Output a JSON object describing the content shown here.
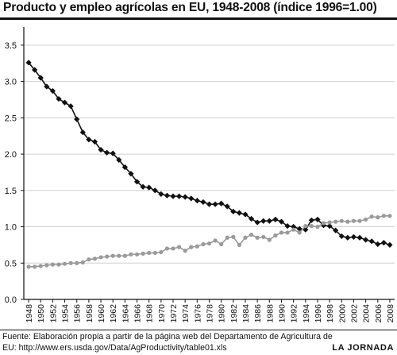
{
  "title": "Producto y empleo agrícolas en EU, 1948-2008 (índice 1996=1.00)",
  "source_line1": "Fuente: Elaboración propia a partir de la página web del Departamento de Agricultura de",
  "source_line2": "EU: http://www.ers.usda.gov/Data/AgProductivity/table01.xls",
  "credit": "LA JORNADA",
  "colors": {
    "employment": "#111111",
    "output": "#9a9a9a",
    "grid": "#d0d0d0",
    "axis": "#111111"
  },
  "chart_data": {
    "type": "line",
    "title": "Producto y empleo agrícolas en EU, 1948-2008 (índice 1996=1.00)",
    "xlabel": "",
    "ylabel": "",
    "x": [
      1948,
      1949,
      1950,
      1951,
      1952,
      1953,
      1954,
      1955,
      1956,
      1957,
      1958,
      1959,
      1960,
      1961,
      1962,
      1963,
      1964,
      1965,
      1966,
      1967,
      1968,
      1969,
      1970,
      1971,
      1972,
      1973,
      1974,
      1975,
      1976,
      1977,
      1978,
      1979,
      1980,
      1981,
      1982,
      1983,
      1984,
      1985,
      1986,
      1987,
      1988,
      1989,
      1990,
      1991,
      1992,
      1993,
      1994,
      1995,
      1996,
      1997,
      1998,
      1999,
      2000,
      2001,
      2002,
      2003,
      2004,
      2005,
      2006,
      2007,
      2008
    ],
    "x_ticks": [
      1948,
      1950,
      1952,
      1954,
      1956,
      1958,
      1960,
      1962,
      1964,
      1966,
      1968,
      1970,
      1972,
      1974,
      1976,
      1978,
      1980,
      1982,
      1984,
      1986,
      1988,
      1990,
      1992,
      1994,
      1996,
      1998,
      2000,
      2002,
      2004,
      2006,
      2008
    ],
    "y_ticks": [
      0.0,
      0.5,
      1.0,
      1.5,
      2.0,
      2.5,
      3.0,
      3.5
    ],
    "y_tick_labels": [
      "0.0",
      "0.5",
      "1.0",
      "1.5",
      "2.0",
      "2.5",
      "3.0",
      "3.5"
    ],
    "ylim": [
      0,
      3.75
    ],
    "xlim": [
      1947.2,
      2008.8
    ],
    "grid": "horizontal",
    "legend": "none",
    "series": [
      {
        "marker": "diamond",
        "color": "#111111",
        "values": [
          3.26,
          3.16,
          3.05,
          2.93,
          2.87,
          2.76,
          2.71,
          2.66,
          2.48,
          2.3,
          2.2,
          2.17,
          2.06,
          2.02,
          2.01,
          1.92,
          1.82,
          1.73,
          1.62,
          1.55,
          1.54,
          1.5,
          1.45,
          1.43,
          1.42,
          1.42,
          1.41,
          1.39,
          1.36,
          1.34,
          1.31,
          1.31,
          1.32,
          1.28,
          1.21,
          1.19,
          1.17,
          1.11,
          1.06,
          1.08,
          1.08,
          1.1,
          1.07,
          1.01,
          1.0,
          0.97,
          0.96,
          1.09,
          1.1,
          1.02,
          1.01,
          0.95,
          0.87,
          0.85,
          0.86,
          0.85,
          0.82,
          0.8,
          0.76,
          0.78,
          0.75
        ]
      },
      {
        "marker": "circle",
        "color": "#9a9a9a",
        "values": [
          0.45,
          0.45,
          0.46,
          0.47,
          0.48,
          0.48,
          0.49,
          0.5,
          0.5,
          0.51,
          0.55,
          0.56,
          0.58,
          0.59,
          0.6,
          0.6,
          0.6,
          0.62,
          0.62,
          0.63,
          0.64,
          0.64,
          0.65,
          0.7,
          0.7,
          0.72,
          0.67,
          0.72,
          0.73,
          0.76,
          0.77,
          0.81,
          0.76,
          0.85,
          0.86,
          0.75,
          0.85,
          0.89,
          0.85,
          0.86,
          0.82,
          0.88,
          0.92,
          0.92,
          0.96,
          0.92,
          1.01,
          1.01,
          1.0,
          1.05,
          1.06,
          1.07,
          1.08,
          1.07,
          1.08,
          1.08,
          1.1,
          1.14,
          1.13,
          1.15,
          1.15
        ]
      }
    ]
  }
}
